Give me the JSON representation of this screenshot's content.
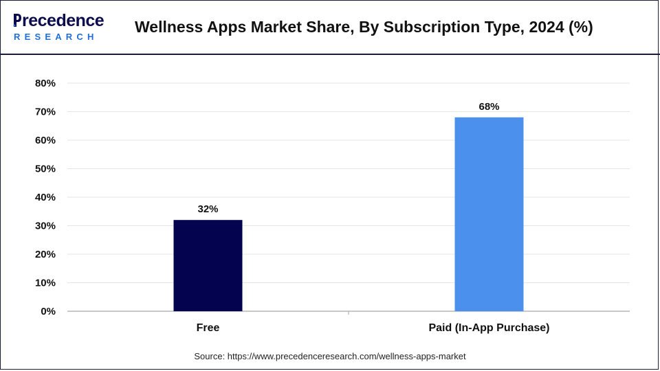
{
  "header": {
    "brand_top": "recedence",
    "brand_bottom": "RESEARCH",
    "title": "Wellness Apps Market Share, By Subscription Type, 2024 (%)"
  },
  "footer": {
    "source": "Source: https://www.precedenceresearch.com/wellness-apps-market"
  },
  "colors": {
    "brand_navy": "#0b0b4d",
    "brand_blue": "#1f6fd6"
  },
  "chart_data": {
    "type": "bar",
    "title": "Wellness Apps Market Share, By Subscription Type, 2024 (%)",
    "categories": [
      "Free",
      "Paid (In-App Purchase)"
    ],
    "values": [
      32,
      68
    ],
    "data_labels": [
      "32%",
      "68%"
    ],
    "bar_colors": [
      "#03034f",
      "#4a90ec"
    ],
    "ylim": [
      0,
      80
    ],
    "yticks": [
      "0%",
      "10%",
      "20%",
      "30%",
      "40%",
      "50%",
      "60%",
      "70%",
      "80%"
    ],
    "ytick_values": [
      0,
      10,
      20,
      30,
      40,
      50,
      60,
      70,
      80
    ],
    "grid": true,
    "legend": "none",
    "xlabel": "",
    "ylabel": ""
  }
}
